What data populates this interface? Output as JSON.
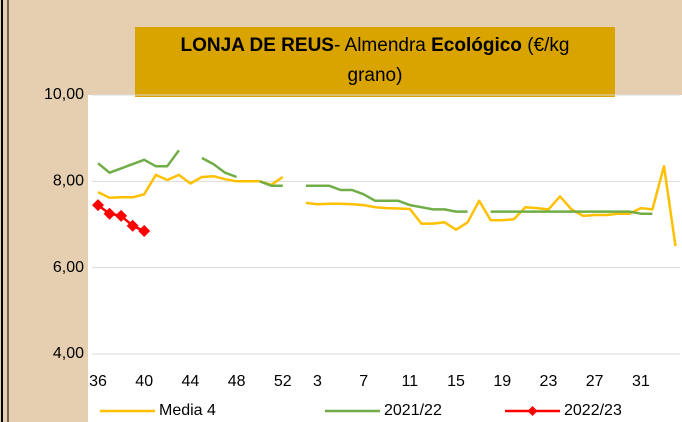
{
  "chart_data": {
    "type": "line",
    "title": [
      [
        "LONJA DE REUS",
        "- Almendra ",
        "Ecológico",
        " (€/kg"
      ],
      [
        "grano)"
      ]
    ],
    "categories": [
      36,
      null,
      null,
      null,
      40,
      null,
      null,
      null,
      44,
      null,
      null,
      null,
      48,
      null,
      null,
      null,
      52,
      null,
      null,
      3,
      null,
      null,
      null,
      7,
      null,
      null,
      null,
      11,
      null,
      null,
      null,
      15,
      null,
      null,
      null,
      19,
      null,
      null,
      null,
      23,
      null,
      null,
      null,
      27,
      null,
      null,
      null,
      31,
      null,
      null,
      null
    ],
    "series": [
      {
        "name": "Media 4",
        "color": "#ffc000",
        "marker": false,
        "values": [
          7.75,
          7.62,
          7.63,
          7.63,
          7.7,
          8.15,
          8.03,
          8.15,
          7.95,
          8.1,
          8.12,
          8.05,
          8.0,
          8.0,
          8.0,
          7.92,
          8.1,
          null,
          7.5,
          7.47,
          7.48,
          7.48,
          7.47,
          7.45,
          7.4,
          7.38,
          7.37,
          7.36,
          7.02,
          7.02,
          7.05,
          6.88,
          7.05,
          7.55,
          7.1,
          7.1,
          7.12,
          7.4,
          7.38,
          7.35,
          7.65,
          7.35,
          7.2,
          7.22,
          7.22,
          7.25,
          7.25,
          7.38,
          7.35,
          8.35,
          6.5
        ]
      },
      {
        "name": "2021/22",
        "color": "#70ad47",
        "marker": false,
        "values": [
          8.42,
          8.2,
          8.3,
          8.4,
          8.5,
          8.35,
          8.35,
          8.72,
          null,
          8.54,
          8.4,
          8.2,
          8.1,
          null,
          8.0,
          7.9,
          7.9,
          null,
          7.9,
          7.9,
          7.9,
          7.8,
          7.8,
          7.7,
          7.55,
          7.55,
          7.55,
          7.45,
          7.4,
          7.35,
          7.35,
          7.3,
          7.3,
          null,
          7.3,
          7.3,
          7.3,
          7.3,
          7.3,
          7.3,
          7.3,
          7.3,
          7.3,
          7.3,
          7.3,
          7.3,
          7.3,
          7.25,
          7.25,
          null,
          null
        ]
      },
      {
        "name": "2022/23",
        "color": "#ff0000",
        "marker": true,
        "values": [
          7.45,
          7.25,
          7.2,
          6.97,
          6.85,
          null,
          null,
          null,
          null,
          null,
          null,
          null,
          null,
          null,
          null,
          null,
          null,
          null,
          null,
          null,
          null,
          null,
          null,
          null,
          null,
          null,
          null,
          null,
          null,
          null,
          null,
          null,
          null,
          null,
          null,
          null,
          null,
          null,
          null,
          null,
          null,
          null,
          null,
          null,
          null,
          null,
          null,
          null,
          null,
          null,
          null
        ]
      }
    ],
    "ylim": [
      4,
      10
    ],
    "yticks": [
      {
        "value": 4,
        "label": "4,00"
      },
      {
        "value": 6,
        "label": "6,00"
      },
      {
        "value": 8,
        "label": "8,00"
      },
      {
        "value": 10,
        "label": "10,00"
      }
    ],
    "grid": true
  }
}
